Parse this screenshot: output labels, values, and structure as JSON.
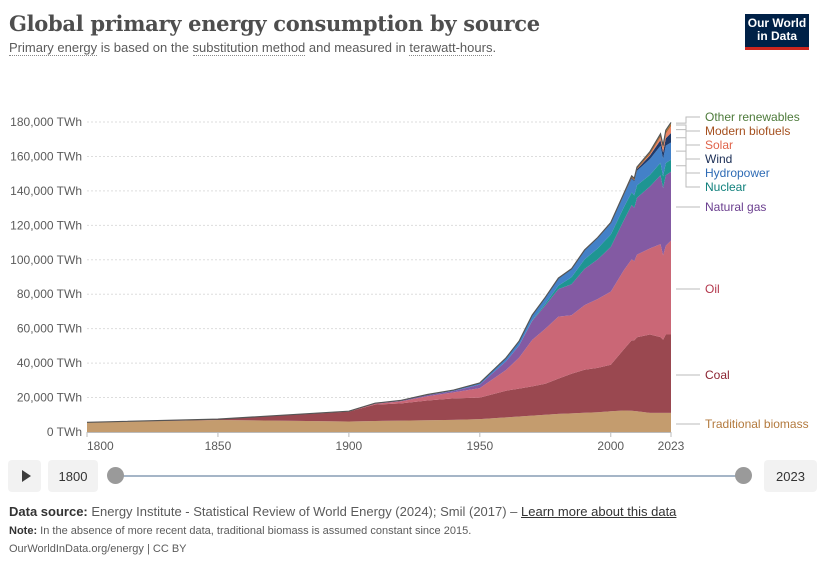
{
  "header": {
    "title": "Global primary energy consumption by source",
    "subtitle_parts": [
      "Primary energy",
      " is based on the ",
      "substitution method",
      " and measured in ",
      "terawatt-hours",
      "."
    ]
  },
  "logo": {
    "line1": "Our World",
    "line2": "in Data"
  },
  "timeline": {
    "play_icon": "play-icon",
    "start_year": "1800",
    "end_year": "2023",
    "range_start": 1800,
    "range_end": 2023
  },
  "footer": {
    "source_label": "Data source:",
    "source_text": " Energy Institute - Statistical Review of World Energy (2024); Smil (2017) – ",
    "source_link": "Learn more about this data",
    "note_label": "Note:",
    "note_text": " In the absence of more recent data, traditional biomass is assumed constant since 2015.",
    "license": "OurWorldInData.org/energy | CC BY"
  },
  "colors": {
    "traditional_biomass": "#c49c6e",
    "coal": "#9a4850",
    "oil": "#ca6776",
    "natural_gas": "#835aa3",
    "nuclear": "#1e9592",
    "hydropower": "#4381c8",
    "wind": "#1f3a6a",
    "solar": "#ea8466",
    "modern_biofuels": "#b5652c",
    "other_renewables": "#6a8f4f"
  },
  "chart_data": {
    "type": "area",
    "stacked": true,
    "title": "Global primary energy consumption by source",
    "xlabel": "",
    "ylabel": "",
    "ylim": [
      0,
      180000
    ],
    "xlim": [
      1800,
      2023
    ],
    "y_ticks": [
      0,
      20000,
      40000,
      60000,
      80000,
      100000,
      120000,
      140000,
      160000,
      180000
    ],
    "y_tick_labels": [
      "0 TWh",
      "20,000 TWh",
      "40,000 TWh",
      "60,000 TWh",
      "80,000 TWh",
      "100,000 TWh",
      "120,000 TWh",
      "140,000 TWh",
      "160,000 TWh",
      "180,000 TWh"
    ],
    "x_ticks": [
      1800,
      1850,
      1900,
      1950,
      2000,
      2023
    ],
    "x_tick_labels": [
      "1800",
      "1850",
      "1900",
      "1950",
      "2000",
      "2023"
    ],
    "grid": "horizontal-dotted",
    "legend": "right-inline",
    "x": [
      1800,
      1850,
      1900,
      1910,
      1920,
      1930,
      1940,
      1950,
      1960,
      1965,
      1970,
      1975,
      1980,
      1985,
      1990,
      1995,
      2000,
      2005,
      2008,
      2009,
      2010,
      2015,
      2019,
      2020,
      2021,
      2023
    ],
    "series": [
      {
        "name": "Traditional biomass",
        "key": "traditional_biomass",
        "values": [
          5556,
          6945,
          6111,
          6400,
          6600,
          6800,
          7000,
          7500,
          8500,
          9000,
          9500,
          10000,
          10500,
          10800,
          11200,
          11500,
          12000,
          12500,
          12300,
          12200,
          12000,
          11111,
          11111,
          11111,
          11111,
          11111
        ]
      },
      {
        "name": "Coal",
        "key": "coal",
        "values": [
          97,
          570,
          5728,
          9500,
          10000,
          11500,
          12500,
          12500,
          15500,
          16200,
          17000,
          18000,
          20500,
          23000,
          25000,
          25700,
          27000,
          35500,
          41000,
          41000,
          43000,
          45500,
          44000,
          42500,
          45500,
          45500
        ]
      },
      {
        "name": "Oil",
        "key": "oil",
        "values": [
          0,
          0,
          181,
          500,
          1200,
          2500,
          3500,
          5500,
          12000,
          18000,
          27000,
          32000,
          36000,
          34000,
          37500,
          40000,
          42500,
          46000,
          47000,
          46000,
          48000,
          50000,
          54000,
          49000,
          51500,
          54500
        ]
      },
      {
        "name": "Natural gas",
        "key": "natural_gas",
        "values": [
          0,
          0,
          64,
          200,
          400,
          600,
          800,
          2000,
          5000,
          7000,
          11000,
          13500,
          16000,
          18000,
          21000,
          23000,
          26000,
          29000,
          31500,
          31000,
          33000,
          36000,
          40000,
          39000,
          41000,
          40000
        ]
      },
      {
        "name": "Nuclear",
        "key": "nuclear",
        "values": [
          0,
          0,
          0,
          0,
          0,
          0,
          0,
          0,
          0,
          100,
          300,
          1000,
          2000,
          4000,
          5500,
          6400,
          7200,
          7500,
          7300,
          7200,
          7300,
          6700,
          7200,
          6800,
          7100,
          7000
        ]
      },
      {
        "name": "Hydropower",
        "key": "hydropower",
        "values": [
          0,
          0,
          20,
          100,
          200,
          350,
          500,
          1000,
          2000,
          2500,
          3100,
          3700,
          4300,
          4800,
          5300,
          6000,
          6500,
          7200,
          8000,
          8100,
          8400,
          9200,
          9900,
          10200,
          10100,
          10000
        ]
      },
      {
        "name": "Wind",
        "key": "wind",
        "values": [
          0,
          0,
          0,
          0,
          0,
          0,
          0,
          0,
          0,
          0,
          0,
          0,
          0,
          0,
          10,
          20,
          80,
          250,
          550,
          650,
          850,
          2100,
          3300,
          3700,
          4300,
          5500
        ]
      },
      {
        "name": "Solar",
        "key": "solar",
        "values": [
          0,
          0,
          0,
          0,
          0,
          0,
          0,
          0,
          0,
          0,
          0,
          0,
          0,
          0,
          0,
          0,
          3,
          10,
          30,
          50,
          80,
          600,
          1700,
          2100,
          2600,
          4000
        ]
      },
      {
        "name": "Modern biofuels",
        "key": "modern_biofuels",
        "values": [
          0,
          0,
          0,
          0,
          0,
          0,
          0,
          0,
          0,
          0,
          0,
          0,
          30,
          80,
          120,
          150,
          190,
          300,
          650,
          700,
          800,
          1000,
          1150,
          1100,
          1200,
          1300
        ]
      },
      {
        "name": "Other renewables",
        "key": "other_renewables",
        "values": [
          0,
          0,
          0,
          0,
          0,
          0,
          0,
          0,
          0,
          0,
          0,
          0,
          40,
          80,
          120,
          160,
          200,
          300,
          380,
          400,
          430,
          600,
          750,
          780,
          800,
          850
        ]
      }
    ],
    "legend_entries": [
      {
        "label": "Other renewables",
        "key": "other_renewables"
      },
      {
        "label": "Modern biofuels",
        "key": "modern_biofuels"
      },
      {
        "label": "Solar",
        "key": "solar"
      },
      {
        "label": "Wind",
        "key": "wind"
      },
      {
        "label": "Hydropower",
        "key": "hydropower"
      },
      {
        "label": "Nuclear",
        "key": "nuclear"
      },
      {
        "label": "Natural gas",
        "key": "natural_gas"
      },
      {
        "label": "Oil",
        "key": "oil"
      },
      {
        "label": "Coal",
        "key": "coal"
      },
      {
        "label": "Traditional biomass",
        "key": "traditional_biomass"
      }
    ]
  }
}
